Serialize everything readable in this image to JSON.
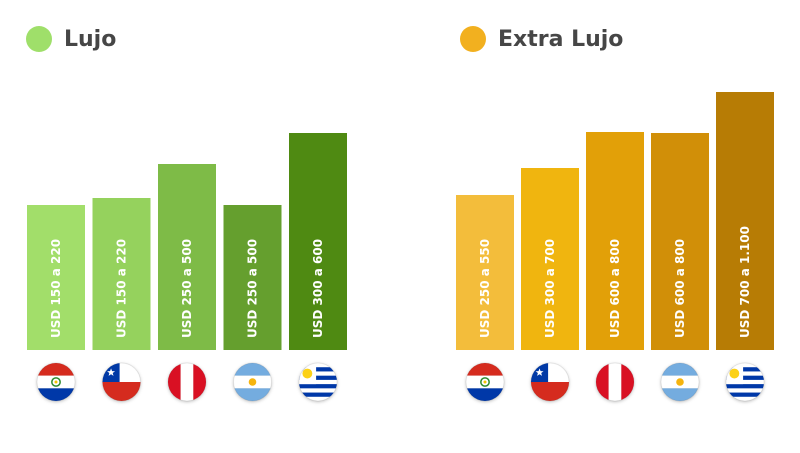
{
  "chart_data": [
    {
      "type": "bar",
      "title": "Lujo",
      "legend_color": "#9fdf6a",
      "categories": [
        "Paraguay",
        "Chile",
        "Perú",
        "Argentina",
        "Uruguay"
      ],
      "values": [
        145,
        152,
        186,
        145,
        217
      ],
      "labels": [
        "USD 150 a 220",
        "USD 150 a 220",
        "USD 250 a 500",
        "USD 250 a 500",
        "USD 300 a 600"
      ],
      "colors": [
        "#a2de6a",
        "#95d25d",
        "#7ebb47",
        "#659f2e",
        "#4f8a12"
      ]
    },
    {
      "type": "bar",
      "title": "Extra Lujo",
      "legend_color": "#f2b01f",
      "categories": [
        "Paraguay",
        "Chile",
        "Perú",
        "Argentina",
        "Uruguay"
      ],
      "values": [
        155,
        182,
        218,
        217,
        258
      ],
      "labels": [
        "USD 250 a 550",
        "USD 300 a 700",
        "USD 600 a 800",
        "USD 600 a 800",
        "USD 700 a 1.100"
      ],
      "colors": [
        "#f3bd3b",
        "#f0b50f",
        "#e2a008",
        "#d18f08",
        "#b77c05"
      ]
    }
  ],
  "flags": [
    "paraguay-flag-icon",
    "chile-flag-icon",
    "peru-flag-icon",
    "argentina-flag-icon",
    "uruguay-flag-icon"
  ]
}
